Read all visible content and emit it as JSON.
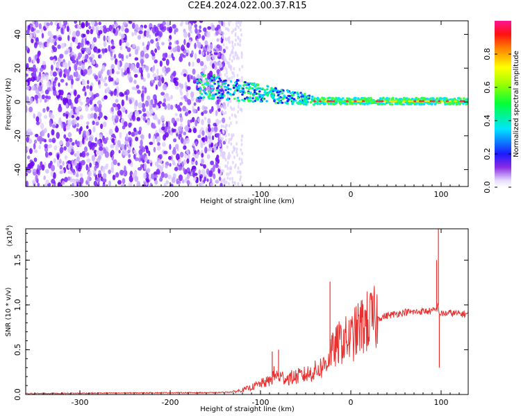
{
  "title": "C2E4.2024.022.00.37.R15",
  "chart_data": [
    {
      "type": "heatmap",
      "xlabel": "Height of straight line (km)",
      "ylabel": "Frequency (Hz)",
      "xlim": [
        -360,
        130
      ],
      "ylim": [
        -50,
        48
      ],
      "x_ticks": [
        -300,
        -200,
        -100,
        0,
        100
      ],
      "x_tick_labels": [
        "-300",
        "-200",
        "-100",
        "0",
        "100"
      ],
      "y_ticks": [
        -40,
        -20,
        0,
        20,
        40
      ],
      "y_tick_labels": [
        "-40",
        "-20",
        "0",
        "20",
        "40"
      ],
      "colorbar": {
        "label": "Normalized spectral amplitude",
        "range": [
          0,
          1
        ],
        "ticks": [
          0,
          0.2,
          0.4,
          0.6,
          0.8
        ],
        "tick_labels": [
          "0.0",
          "0.2",
          "0.4",
          "0.6",
          "0.8"
        ],
        "colormap": "white-purple-blue-cyan-green-yellow-red-magenta"
      },
      "grid": false
    },
    {
      "type": "line",
      "xlabel": "Height of straight line (km)",
      "ylabel": "SNR (10 * v/v)",
      "y_multiplier_label": "(x10",
      "y_multiplier_exp": "4",
      "y_multiplier_close": ")",
      "xlim": [
        -360,
        130
      ],
      "ylim": [
        0,
        1.85
      ],
      "x_ticks": [
        -300,
        -200,
        -100,
        0,
        100
      ],
      "x_tick_labels": [
        "-300",
        "-200",
        "-100",
        "0",
        "100"
      ],
      "y_ticks": [
        0,
        0.5,
        1.0,
        1.5
      ],
      "y_tick_labels": [
        "0.0",
        "0.5",
        "1.0",
        "1.5"
      ],
      "color": "#e8302f",
      "grid": false,
      "series": [
        {
          "x": [
            -360,
            -200,
            -150,
            -130,
            -120,
            -110,
            -100,
            -90,
            -85,
            -80,
            -70,
            -60,
            -50,
            -40,
            -30,
            -25,
            -22,
            -20,
            -15,
            -10,
            0,
            10,
            20,
            30,
            40,
            50,
            60,
            70,
            80,
            90,
            95,
            97,
            98,
            100,
            110,
            120,
            130
          ],
          "y": [
            0.01,
            0.02,
            0.02,
            0.03,
            0.05,
            0.08,
            0.12,
            0.15,
            0.22,
            0.2,
            0.18,
            0.2,
            0.22,
            0.26,
            0.32,
            0.4,
            0.5,
            0.48,
            0.55,
            0.6,
            0.62,
            0.75,
            0.82,
            0.85,
            0.88,
            0.9,
            0.92,
            0.92,
            0.93,
            0.93,
            0.95,
            1.0,
            0.9,
            0.9,
            0.91,
            0.9,
            0.9
          ]
        }
      ],
      "spikes": [
        {
          "x": -23,
          "y": 1.26
        },
        {
          "x": -80,
          "y": 0.5
        },
        {
          "x": -87,
          "y": 0.48
        },
        {
          "x": 97,
          "y": 1.85
        },
        {
          "x": 98,
          "y": 0.3
        },
        {
          "x": 95,
          "y": 1.5
        }
      ]
    }
  ]
}
